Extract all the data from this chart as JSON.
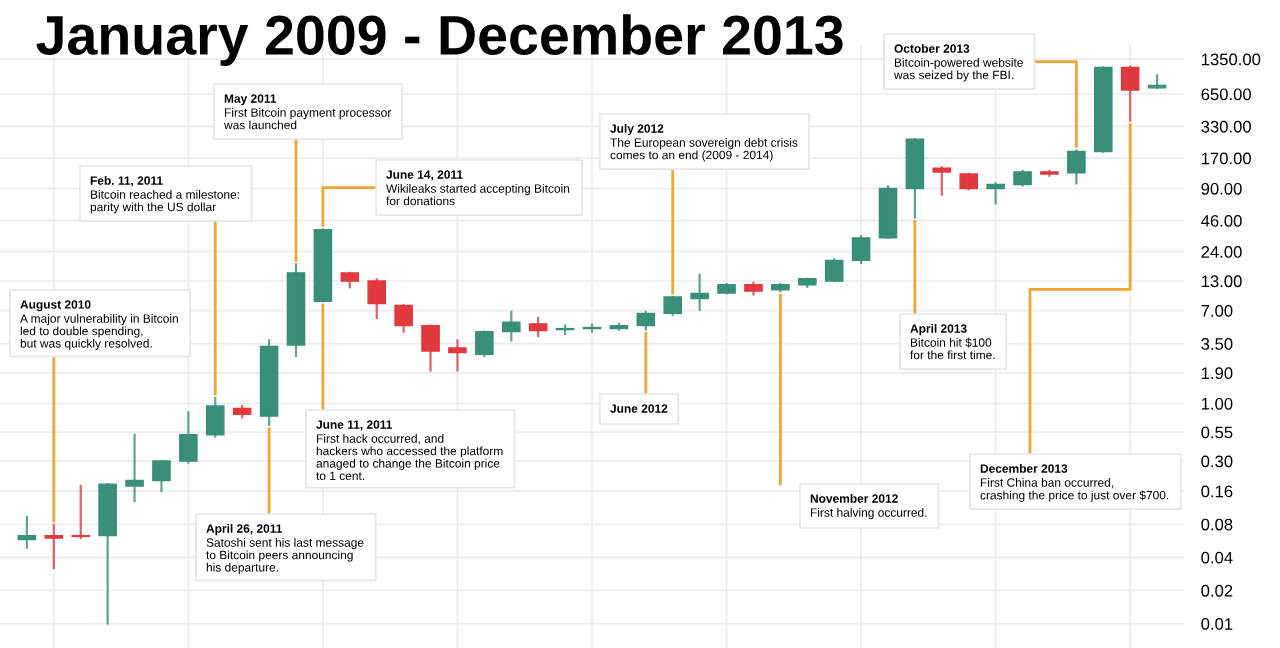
{
  "chart_data": {
    "type": "candlestick",
    "title": "January 2009 - December 2013",
    "categories": [
      null,
      null,
      null,
      null,
      null,
      null,
      null,
      null,
      null,
      null,
      null,
      null,
      null,
      null,
      null,
      null,
      null,
      null,
      null,
      null,
      null,
      null,
      null,
      null,
      null,
      null,
      null,
      null,
      null,
      null,
      null,
      null,
      null,
      null,
      null,
      null,
      null,
      null,
      null,
      null,
      null,
      null,
      null
    ],
    "ohlc": [
      [
        0.058,
        0.093,
        0.049,
        0.063
      ],
      [
        0.063,
        0.079,
        0.032,
        0.06
      ],
      [
        0.063,
        0.178,
        0.06,
        0.062
      ],
      [
        0.063,
        0.185,
        0.01,
        0.185
      ],
      [
        0.178,
        0.52,
        0.13,
        0.2
      ],
      [
        0.2,
        0.3,
        0.16,
        0.3
      ],
      [
        0.3,
        0.83,
        0.29,
        0.52
      ],
      [
        0.52,
        1.12,
        0.5,
        0.95
      ],
      [
        0.9,
        0.95,
        0.75,
        0.8
      ],
      [
        0.77,
        3.75,
        0.64,
        3.3
      ],
      [
        3.4,
        18.4,
        2.7,
        15.4
      ],
      [
        8.5,
        38,
        8.5,
        38
      ],
      [
        15.4,
        15.4,
        11.4,
        13
      ],
      [
        13,
        13.5,
        6,
        8.1
      ],
      [
        7.8,
        7.8,
        4.5,
        5.1
      ],
      [
        5.1,
        5.1,
        2,
        3
      ],
      [
        3.2,
        3.75,
        2,
        2.9
      ],
      [
        2.8,
        4.5,
        2.7,
        4.5
      ],
      [
        4.5,
        6.8,
        3.75,
        5.5
      ],
      [
        5.3,
        6,
        4.1,
        4.6
      ],
      [
        4.7,
        5.1,
        4.3,
        4.8
      ],
      [
        4.8,
        5.2,
        4.5,
        4.9
      ],
      [
        4.8,
        5.3,
        4.7,
        5.1
      ],
      [
        5.1,
        6.8,
        4.7,
        6.6
      ],
      [
        6.6,
        9.3,
        6.4,
        9.3
      ],
      [
        9,
        14.8,
        7.1,
        10
      ],
      [
        10.1,
        12.2,
        10,
        12
      ],
      [
        12,
        12.5,
        9.8,
        10.5
      ],
      [
        10.8,
        12.2,
        10.5,
        12
      ],
      [
        12,
        13.6,
        11.5,
        13.6
      ],
      [
        13,
        20.5,
        13,
        20
      ],
      [
        20,
        33,
        19,
        32
      ],
      [
        32,
        94,
        32,
        90
      ],
      [
        90,
        253,
        49,
        253
      ],
      [
        138,
        140,
        79,
        127
      ],
      [
        122,
        122,
        89,
        90
      ],
      [
        90,
        100,
        66,
        98
      ],
      [
        98,
        130,
        96,
        127
      ],
      [
        127,
        130,
        118,
        122
      ],
      [
        125,
        200,
        100,
        195
      ],
      [
        195,
        1136,
        195,
        1136
      ],
      [
        1136,
        1150,
        372,
        707
      ],
      [
        740,
        960,
        740,
        780
      ]
    ],
    "colors": [
      "#3a8f77",
      "#e0393e",
      "#e0393e",
      "#3a8f77",
      "#3a8f77",
      "#3a8f77",
      "#3a8f77",
      "#3a8f77",
      "#e0393e",
      "#3a8f77",
      "#3a8f77",
      "#3a8f77",
      "#e0393e",
      "#e0393e",
      "#e0393e",
      "#e0393e",
      "#e0393e",
      "#3a8f77",
      "#3a8f77",
      "#e0393e",
      "#3a8f77",
      "#3a8f77",
      "#3a8f77",
      "#3a8f77",
      "#3a8f77",
      "#3a8f77",
      "#3a8f77",
      "#e0393e",
      "#3a8f77",
      "#3a8f77",
      "#3a8f77",
      "#3a8f77",
      "#3a8f77",
      "#3a8f77",
      "#e0393e",
      "#e0393e",
      "#3a8f77",
      "#3a8f77",
      "#e0393e",
      "#3a8f77",
      "#3a8f77",
      "#e0393e",
      "#3a8f77"
    ],
    "log": "y",
    "ylim": [
      0.006,
      1800
    ],
    "yticks": [
      {
        "value": 0.01,
        "label": "0.01"
      },
      {
        "value": 0.02,
        "label": "0.02"
      },
      {
        "value": 0.04,
        "label": "0.04"
      },
      {
        "value": 0.08,
        "label": "0.08"
      },
      {
        "value": 0.16,
        "label": "0.16"
      },
      {
        "value": 0.3,
        "label": "0.30"
      },
      {
        "value": 0.55,
        "label": "0.55"
      },
      {
        "value": 1,
        "label": "1.00"
      },
      {
        "value": 1.9,
        "label": "1.90"
      },
      {
        "value": 3.5,
        "label": "3.50"
      },
      {
        "value": 7,
        "label": "7.00"
      },
      {
        "value": 13,
        "label": "13.00"
      },
      {
        "value": 24,
        "label": "24.00"
      },
      {
        "value": 46,
        "label": "46.00"
      },
      {
        "value": 90,
        "label": "90.00"
      },
      {
        "value": 170,
        "label": "170.00"
      },
      {
        "value": 330,
        "label": "330.00"
      },
      {
        "value": 650,
        "label": "650.00"
      },
      {
        "value": 1350,
        "label": "1350.00"
      }
    ],
    "grid": true,
    "tick_labels": "y",
    "annotations": [
      "August 2010\nA major vulnerability in Bitcoin\nled to double spending,\nbut was quickly resolved.",
      "Feb. 11, 2011\nBitcoin reached a milestone:\nparity with the US dollar",
      "May 2011\nFirst Bitcoin payment processor\nwas launched",
      "June 14, 2011\nWikileaks started accepting Bitcoin\nfor donations",
      "June 11, 2011\nFirst hack occurred, and\nhackers who accessed the platform\nanaged to change the Bitcoin price\nto 1 cent.",
      "April 26, 2011\nSatoshi sent his last message\nto Bitcoin peers announcing\nhis departure.",
      "July 2012\nThe European sovereign debt crisis\ncomes to an end (2009 - 2014)",
      "June 2012",
      "November 2012\nFirst halving occurred.",
      "April 2013\nBitcoin hit $100\nfor the first time.",
      "October 2013\nBitcoin-powered website\nwas seized by the FBI.",
      "December 2013\nFirst China ban occurred,\ncrashing the price to just over $700."
    ]
  }
}
